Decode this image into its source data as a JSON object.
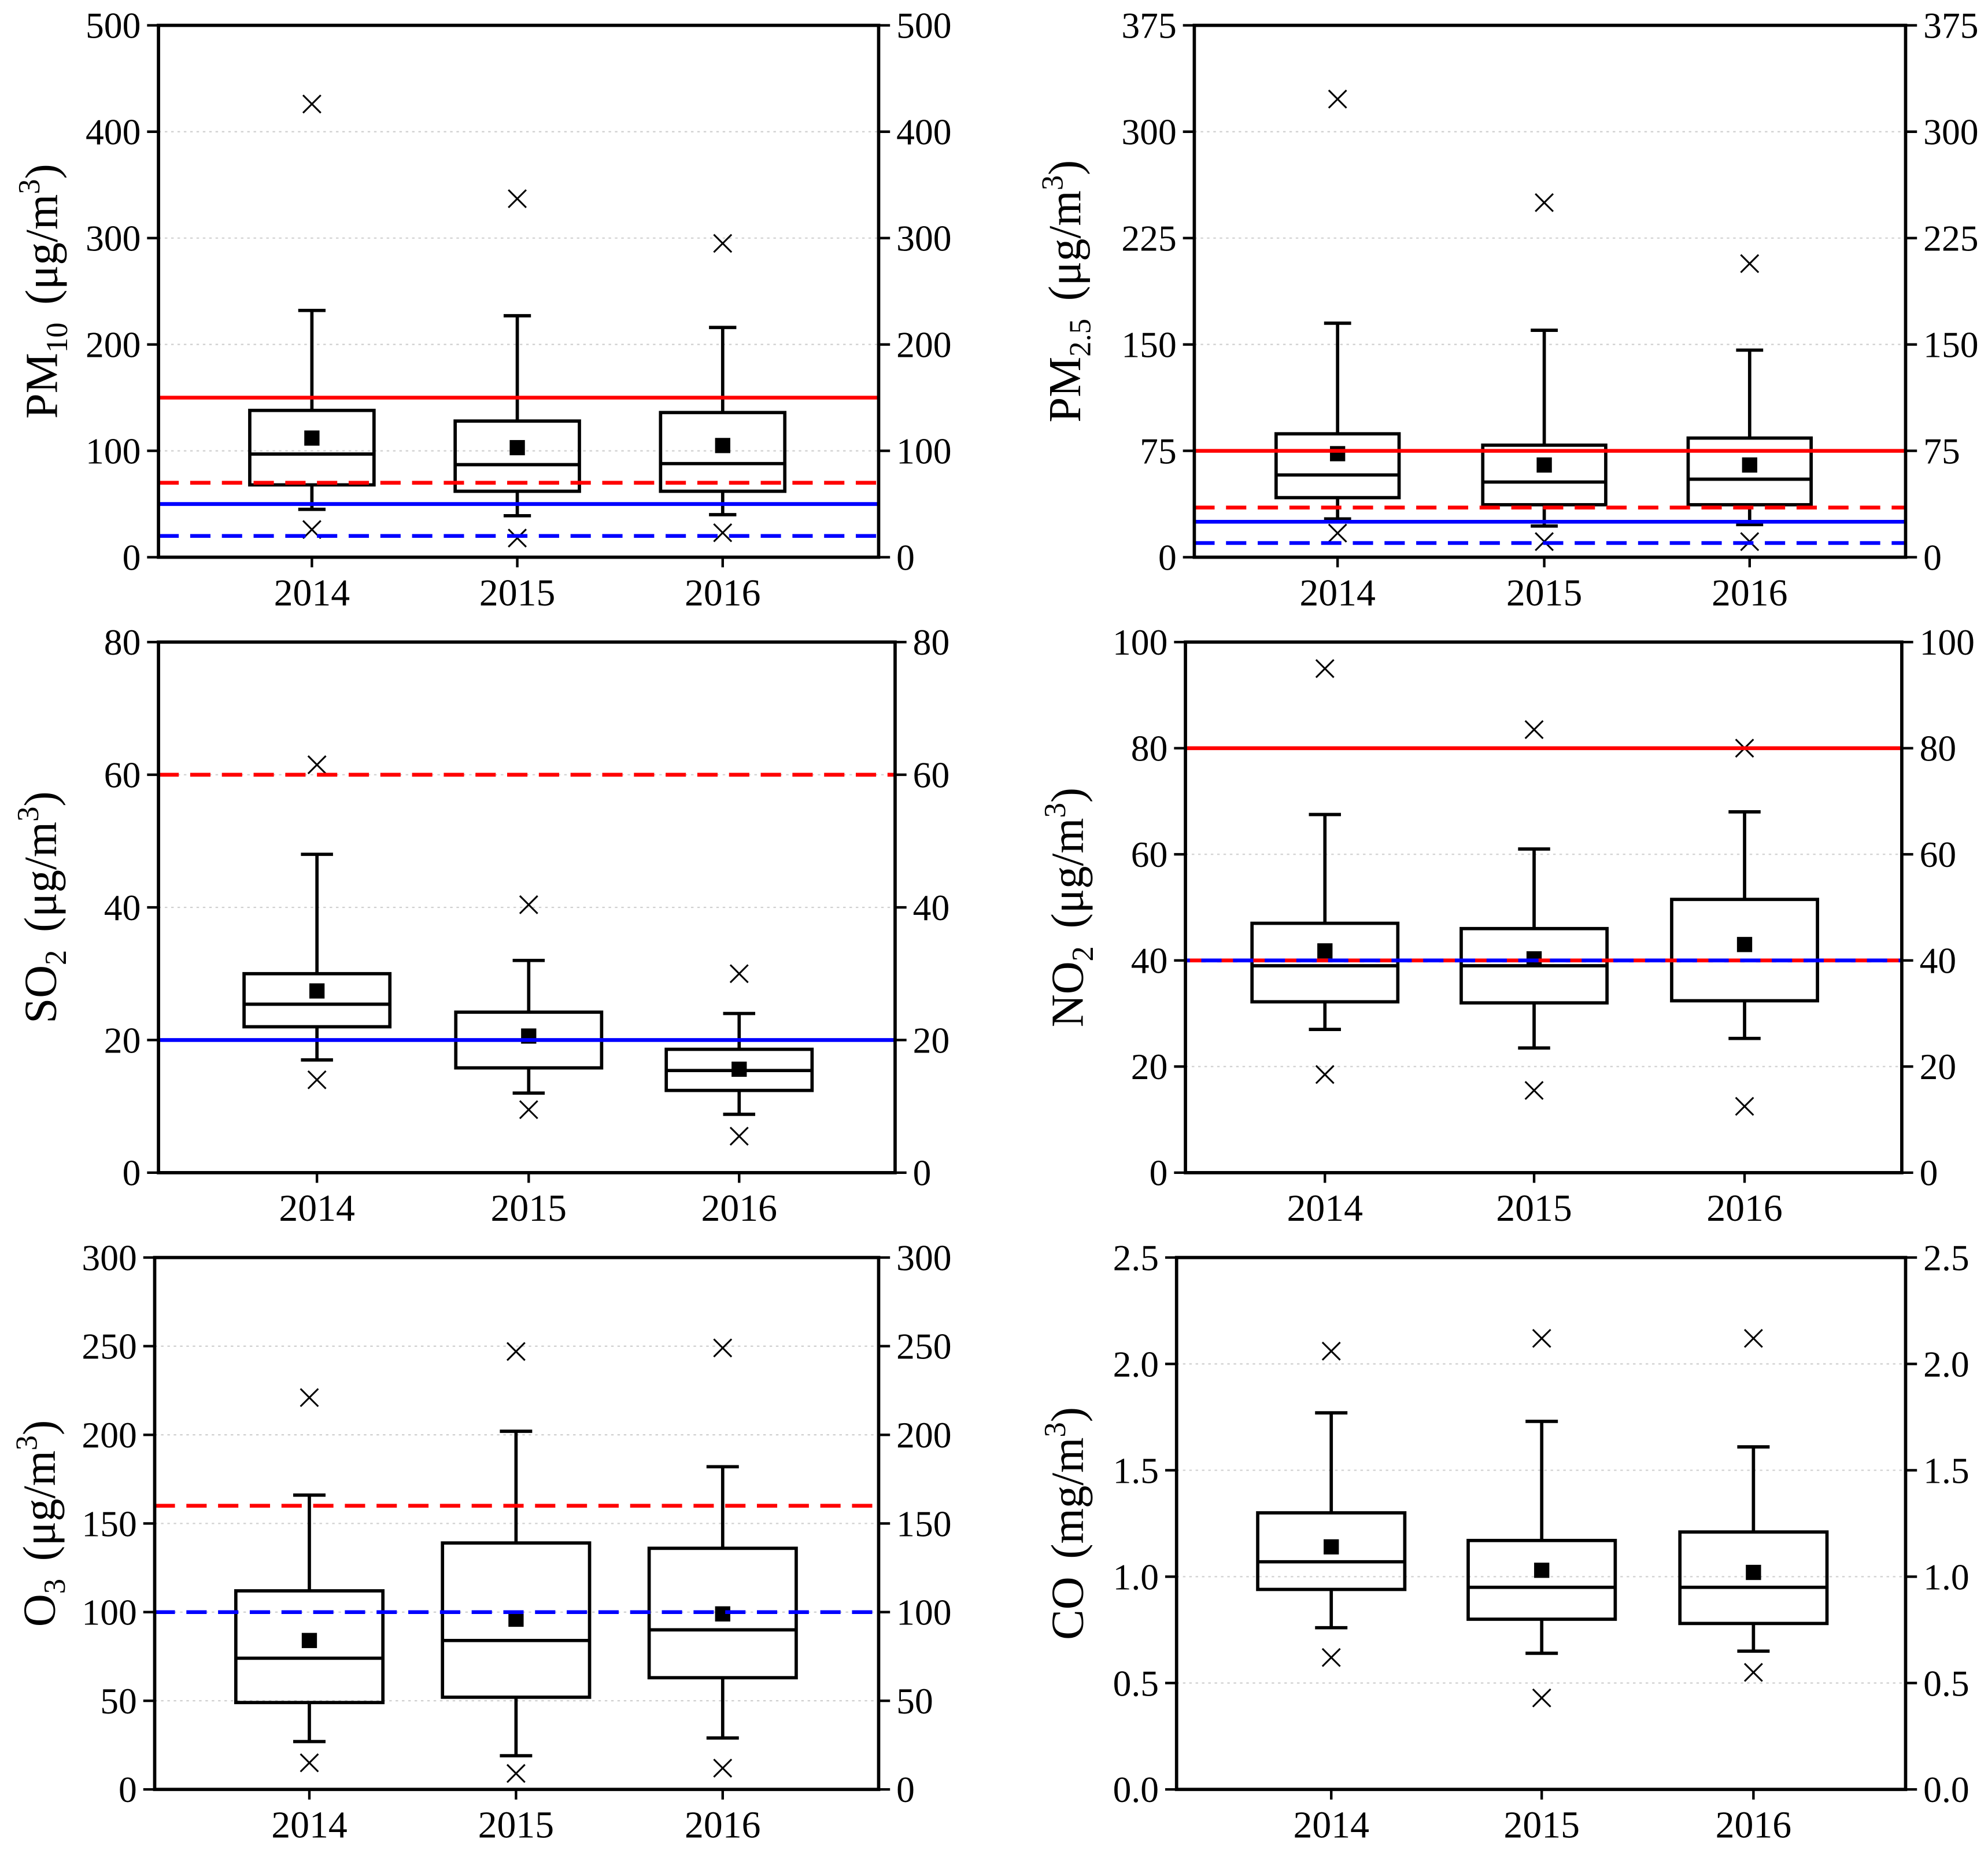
{
  "chart_data": [
    {
      "type": "box",
      "ylabel": {
        "base": "PM",
        "sub": "10",
        "unit": "(μg/m",
        "sup": "3",
        "close": ")"
      },
      "ylim": [
        0,
        500
      ],
      "ytick_labels": [
        "0",
        "100",
        "200",
        "300",
        "400",
        "500"
      ],
      "categories": [
        "2014",
        "2015",
        "2016"
      ],
      "boxes": [
        {
          "whisker_low": 45,
          "q1": 68,
          "median": 97,
          "q3": 138,
          "whisker_high": 232,
          "mean": 112,
          "min": 26,
          "max": 426
        },
        {
          "whisker_low": 39,
          "q1": 62,
          "median": 87,
          "q3": 128,
          "whisker_high": 227,
          "mean": 103,
          "min": 18,
          "max": 337
        },
        {
          "whisker_low": 40,
          "q1": 62,
          "median": 88,
          "q3": 136,
          "whisker_high": 216,
          "mean": 105,
          "min": 23,
          "max": 295
        }
      ],
      "reference_lines": [
        {
          "value": 150,
          "color": "#ff0000",
          "dashed": false
        },
        {
          "value": 70,
          "color": "#ff0000",
          "dashed": true
        },
        {
          "value": 50,
          "color": "#0000ff",
          "dashed": false
        },
        {
          "value": 20,
          "color": "#0000ff",
          "dashed": true
        }
      ]
    },
    {
      "type": "box",
      "ylabel": {
        "base": "PM",
        "sub": "2.5",
        "unit": "(μg/m",
        "sup": "3",
        "close": ")"
      },
      "ylim": [
        0,
        375
      ],
      "ytick_labels": [
        "0",
        "75",
        "150",
        "225",
        "300",
        "375"
      ],
      "categories": [
        "2014",
        "2015",
        "2016"
      ],
      "boxes": [
        {
          "whisker_low": 27,
          "q1": 42,
          "median": 58,
          "q3": 87,
          "whisker_high": 165,
          "mean": 73,
          "min": 17,
          "max": 323
        },
        {
          "whisker_low": 22,
          "q1": 37,
          "median": 53,
          "q3": 79,
          "whisker_high": 160,
          "mean": 65,
          "min": 11,
          "max": 250
        },
        {
          "whisker_low": 23,
          "q1": 37,
          "median": 55,
          "q3": 84,
          "whisker_high": 146,
          "mean": 65,
          "min": 11,
          "max": 207
        }
      ],
      "reference_lines": [
        {
          "value": 75,
          "color": "#ff0000",
          "dashed": false
        },
        {
          "value": 35,
          "color": "#ff0000",
          "dashed": true
        },
        {
          "value": 25,
          "color": "#0000ff",
          "dashed": false
        },
        {
          "value": 10,
          "color": "#0000ff",
          "dashed": true
        }
      ]
    },
    {
      "type": "box",
      "ylabel": {
        "base": "SO",
        "sub": "2",
        "unit": "(μg/m",
        "sup": "3",
        "close": ")"
      },
      "ylim": [
        0,
        80
      ],
      "ytick_labels": [
        "0",
        "20",
        "40",
        "60",
        "80"
      ],
      "categories": [
        "2014",
        "2015",
        "2016"
      ],
      "boxes": [
        {
          "whisker_low": 17,
          "q1": 22,
          "median": 25.4,
          "q3": 30,
          "whisker_high": 48,
          "mean": 27.4,
          "min": 14,
          "max": 61.5
        },
        {
          "whisker_low": 12,
          "q1": 15.8,
          "median": 20,
          "q3": 24.2,
          "whisker_high": 32,
          "mean": 20.6,
          "min": 9.5,
          "max": 40.4
        },
        {
          "whisker_low": 8.8,
          "q1": 12.4,
          "median": 15.4,
          "q3": 18.6,
          "whisker_high": 24,
          "mean": 15.6,
          "min": 5.5,
          "max": 30
        }
      ],
      "reference_lines": [
        {
          "value": 60,
          "color": "#ff0000",
          "dashed": true
        },
        {
          "value": 20,
          "color": "#0000ff",
          "dashed": false
        }
      ]
    },
    {
      "type": "box",
      "ylabel": {
        "base": "NO",
        "sub": "2",
        "unit": "(μg/m",
        "sup": "3",
        "close": ")"
      },
      "ylim": [
        0,
        100
      ],
      "ytick_labels": [
        "0",
        "20",
        "40",
        "60",
        "80",
        "100"
      ],
      "categories": [
        "2014",
        "2015",
        "2016"
      ],
      "boxes": [
        {
          "whisker_low": 27,
          "q1": 32.2,
          "median": 39,
          "q3": 47,
          "whisker_high": 67.5,
          "mean": 41.8,
          "min": 18.5,
          "max": 95
        },
        {
          "whisker_low": 23.5,
          "q1": 32,
          "median": 39,
          "q3": 46,
          "whisker_high": 61,
          "mean": 40.3,
          "min": 15.5,
          "max": 83.5
        },
        {
          "whisker_low": 25.3,
          "q1": 32.4,
          "median": 40,
          "q3": 51.5,
          "whisker_high": 68,
          "mean": 43,
          "min": 12.5,
          "max": 80
        }
      ],
      "reference_lines": [
        {
          "value": 80,
          "color": "#ff0000",
          "dashed": false
        },
        {
          "value": 40,
          "color": "#ff0000",
          "dashed": true
        },
        {
          "value": 40,
          "color": "#0000ff",
          "dashed": true
        }
      ]
    },
    {
      "type": "box",
      "ylabel": {
        "base": "O",
        "sub": "3",
        "unit": "(μg/m",
        "sup": "3",
        "close": ")"
      },
      "ylim": [
        0,
        300
      ],
      "ytick_labels": [
        "0",
        "50",
        "100",
        "150",
        "200",
        "250",
        "300"
      ],
      "categories": [
        "2014",
        "2015",
        "2016"
      ],
      "boxes": [
        {
          "whisker_low": 27,
          "q1": 49,
          "median": 74,
          "q3": 112,
          "whisker_high": 166,
          "mean": 84,
          "min": 15,
          "max": 221
        },
        {
          "whisker_low": 19,
          "q1": 52,
          "median": 84,
          "q3": 139,
          "whisker_high": 202,
          "mean": 96,
          "min": 9,
          "max": 247
        },
        {
          "whisker_low": 29,
          "q1": 63,
          "median": 90,
          "q3": 136,
          "whisker_high": 182,
          "mean": 99,
          "min": 12,
          "max": 249
        }
      ],
      "reference_lines": [
        {
          "value": 160,
          "color": "#ff0000",
          "dashed": true
        },
        {
          "value": 100,
          "color": "#0000ff",
          "dashed": true
        }
      ]
    },
    {
      "type": "box",
      "ylabel": {
        "base": "CO",
        "unit": "(mg/m",
        "sup": "3",
        "close": ")"
      },
      "ylim": [
        0,
        2.5
      ],
      "ytick_labels": [
        "0.0",
        "0.5",
        "1.0",
        "1.5",
        "2.0",
        "2.5"
      ],
      "categories": [
        "2014",
        "2015",
        "2016"
      ],
      "boxes": [
        {
          "whisker_low": 0.76,
          "q1": 0.94,
          "median": 1.07,
          "q3": 1.3,
          "whisker_high": 1.77,
          "mean": 1.14,
          "min": 0.62,
          "max": 2.06
        },
        {
          "whisker_low": 0.64,
          "q1": 0.8,
          "median": 0.95,
          "q3": 1.17,
          "whisker_high": 1.73,
          "mean": 1.03,
          "min": 0.43,
          "max": 2.12
        },
        {
          "whisker_low": 0.65,
          "q1": 0.78,
          "median": 0.95,
          "q3": 1.21,
          "whisker_high": 1.61,
          "mean": 1.02,
          "min": 0.55,
          "max": 2.12
        }
      ],
      "reference_lines": []
    }
  ]
}
